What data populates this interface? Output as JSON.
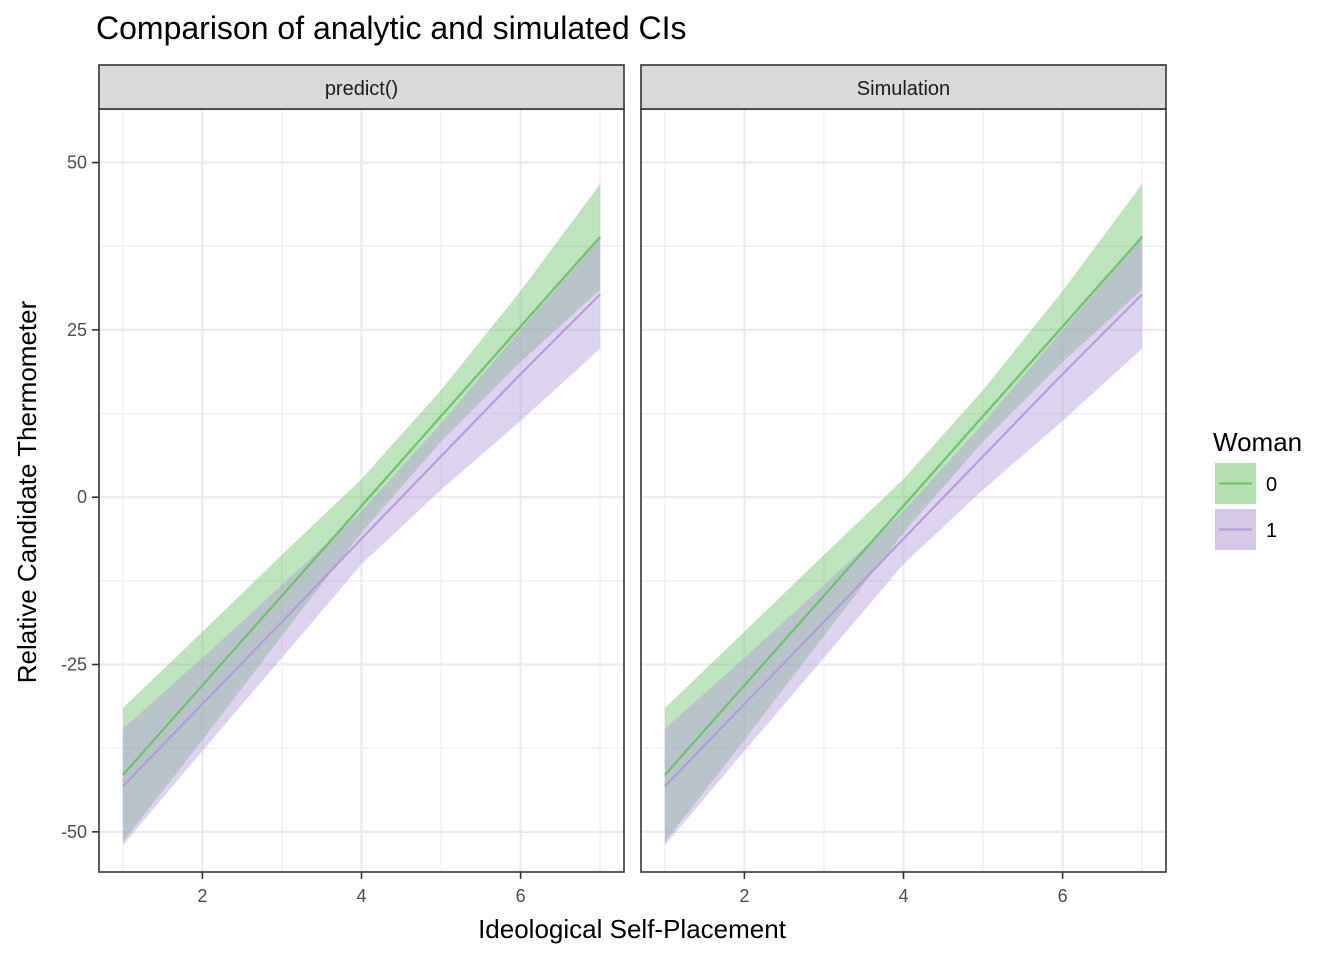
{
  "chart_data": {
    "type": "area",
    "title": "Comparison of analytic and simulated CIs",
    "xlabel": "Ideological Self-Placement",
    "ylabel": "Relative Candidate Thermometer",
    "xlim": [
      0.7,
      7.3
    ],
    "ylim": [
      -56,
      58
    ],
    "x_ticks": [
      2,
      4,
      6
    ],
    "y_ticks": [
      -50,
      -25,
      0,
      25,
      50
    ],
    "x_tick_labels": [
      "2",
      "4",
      "6"
    ],
    "y_tick_labels": [
      "-50",
      "-25",
      "0",
      "25",
      "50"
    ],
    "grid": true,
    "legend": {
      "title": "Woman",
      "position": "right",
      "entries": [
        {
          "label": "0",
          "color": "#6cc36a",
          "fill": "#b5e0b0"
        },
        {
          "label": "1",
          "color": "#b39ddb",
          "fill": "#d4c8e6"
        }
      ]
    },
    "facets": [
      {
        "label": "predict()",
        "series": [
          {
            "name": "0",
            "x": [
              1,
              2,
              3,
              4,
              5,
              6,
              7
            ],
            "fit": [
              -41.5,
              -28.1,
              -14.7,
              -1.3,
              12.1,
              25.5,
              38.9
            ],
            "lower": [
              -51.5,
              -36.3,
              -20.7,
              -5.3,
              8.3,
              20.2,
              31.0
            ],
            "upper": [
              -31.5,
              -20.1,
              -8.6,
              2.7,
              16.0,
              30.8,
              46.8
            ]
          },
          {
            "name": "1",
            "x": [
              1,
              2,
              3,
              4,
              5,
              6,
              7
            ],
            "fit": [
              -43.2,
              -30.9,
              -18.6,
              -6.2,
              6.1,
              18.4,
              30.3
            ],
            "lower": [
              -52.0,
              -37.9,
              -24.0,
              -10.0,
              1.1,
              11.4,
              22.2
            ],
            "upper": [
              -34.6,
              -24.0,
              -13.1,
              -2.1,
              11.0,
              25.0,
              38.7
            ]
          }
        ]
      },
      {
        "label": "Simulation",
        "series": [
          {
            "name": "0",
            "x": [
              1,
              2,
              3,
              4,
              5,
              6,
              7
            ],
            "fit": [
              -41.5,
              -28.1,
              -14.7,
              -1.3,
              12.1,
              25.5,
              38.9
            ],
            "lower": [
              -51.5,
              -36.3,
              -20.7,
              -5.3,
              8.3,
              20.2,
              31.0
            ],
            "upper": [
              -31.5,
              -20.1,
              -8.6,
              2.7,
              16.0,
              30.8,
              46.8
            ]
          },
          {
            "name": "1",
            "x": [
              1,
              2,
              3,
              4,
              5,
              6,
              7
            ],
            "fit": [
              -43.2,
              -30.9,
              -18.6,
              -6.2,
              6.1,
              18.4,
              30.3
            ],
            "lower": [
              -52.0,
              -37.9,
              -24.0,
              -10.0,
              1.1,
              11.4,
              22.2
            ],
            "upper": [
              -34.6,
              -24.0,
              -13.1,
              -2.1,
              11.0,
              25.0,
              38.7
            ]
          }
        ]
      }
    ]
  }
}
